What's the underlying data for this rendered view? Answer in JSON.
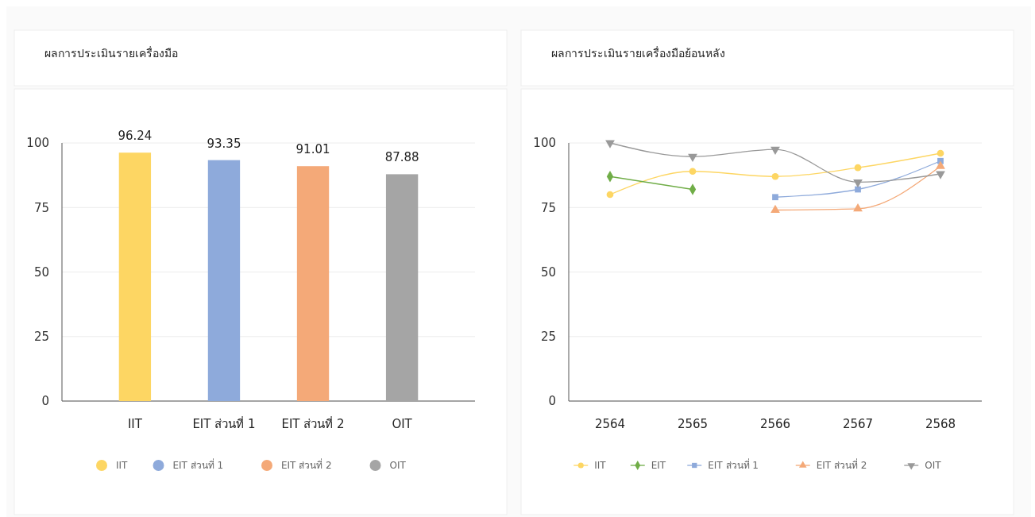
{
  "chart_data": [
    {
      "type": "bar",
      "title": "ผลการประเมินรายเครื่องมือ",
      "categories": [
        "IIT",
        "EIT ส่วนที่ 1",
        "EIT ส่วนที่ 2",
        "OIT"
      ],
      "series": [
        {
          "name": "IIT",
          "color": "#fdd663",
          "values": [
            96.24,
            null,
            null,
            null
          ]
        },
        {
          "name": "EIT ส่วนที่ 1",
          "color": "#8eaadb",
          "values": [
            null,
            93.35,
            null,
            null
          ]
        },
        {
          "name": "EIT ส่วนที่ 2",
          "color": "#f4a978",
          "values": [
            null,
            null,
            91.01,
            null
          ]
        },
        {
          "name": "OIT",
          "color": "#a5a5a5",
          "values": [
            null,
            null,
            null,
            87.88
          ]
        }
      ],
      "data_labels": true,
      "ylim": [
        0,
        100
      ],
      "yticks": [
        0,
        25,
        50,
        75,
        100
      ],
      "grid": "y",
      "legend": "bottom"
    },
    {
      "type": "line",
      "title": "ผลการประเมินรายเครื่องมือย้อนหลัง",
      "categories": [
        "2564",
        "2565",
        "2566",
        "2567",
        "2568"
      ],
      "ylim": [
        0,
        100
      ],
      "yticks": [
        0,
        25,
        50,
        75,
        100
      ],
      "grid": "y",
      "legend": "bottom",
      "series": [
        {
          "name": "IIT",
          "color": "#fdd663",
          "marker": "circle",
          "values": [
            80,
            89,
            87,
            90.4,
            96
          ]
        },
        {
          "name": "EIT",
          "color": "#70ad47",
          "marker": "diamond",
          "values": [
            87,
            82,
            null,
            null,
            null
          ]
        },
        {
          "name": "EIT ส่วนที่ 1",
          "color": "#8eaadb",
          "marker": "square",
          "values": [
            null,
            null,
            79,
            82,
            93
          ]
        },
        {
          "name": "EIT ส่วนที่ 2",
          "color": "#f4a978",
          "marker": "triangle",
          "values": [
            null,
            null,
            74,
            74.5,
            91
          ]
        },
        {
          "name": "OIT",
          "color": "#999999",
          "marker": "triangle-down",
          "values": [
            100,
            94.7,
            97.5,
            84.8,
            88
          ]
        }
      ]
    }
  ]
}
